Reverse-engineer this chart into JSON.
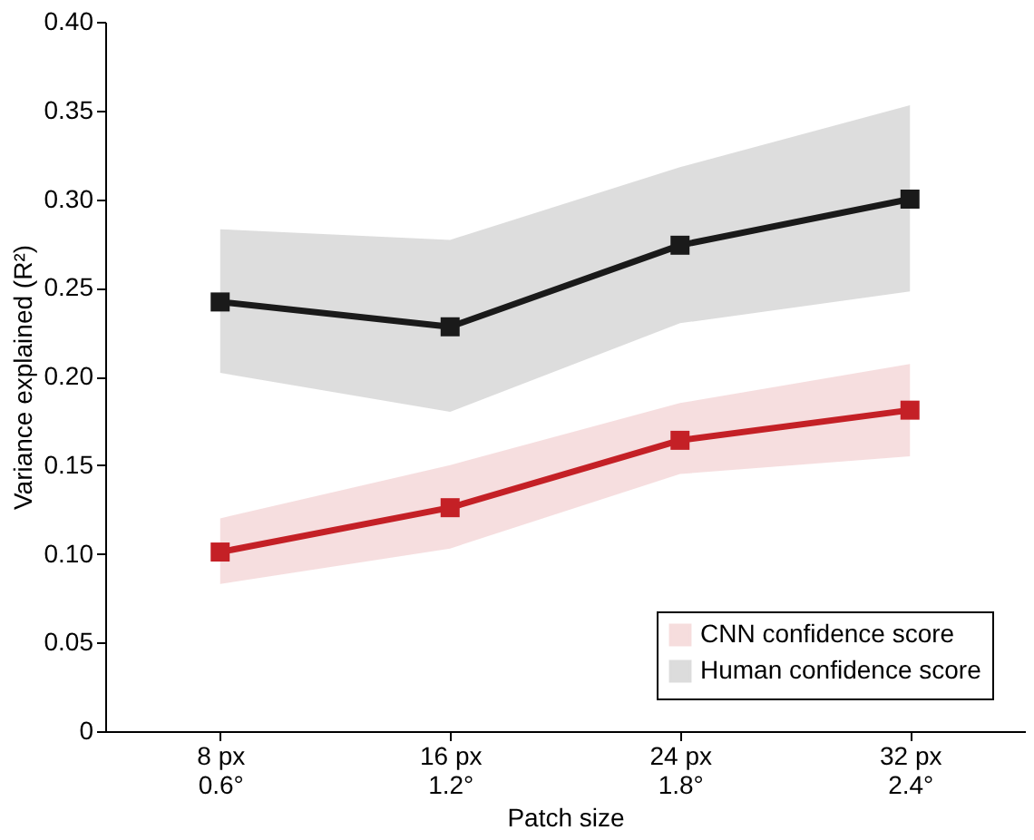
{
  "chart_data": {
    "type": "line",
    "xlabel": "Patch size",
    "ylabel": "Variance explained (R²)",
    "categories": [
      "8 px\n0.6°",
      "16 px\n1.2°",
      "24 px\n1.8°",
      "32 px\n2.4°"
    ],
    "series": [
      {
        "name": "CNN confidence score",
        "color": "#c42026",
        "values": [
          0.101,
          0.126,
          0.164,
          0.181
        ],
        "lower": [
          0.083,
          0.103,
          0.145,
          0.155
        ],
        "upper": [
          0.12,
          0.15,
          0.185,
          0.207
        ]
      },
      {
        "name": "Human confidence score",
        "color": "#1a1a1a",
        "values": [
          0.242,
          0.228,
          0.274,
          0.3
        ],
        "lower": [
          0.202,
          0.18,
          0.23,
          0.248
        ],
        "upper": [
          0.283,
          0.277,
          0.318,
          0.353
        ]
      }
    ],
    "ylim": [
      0,
      0.4
    ],
    "yticks": [
      0,
      0.05,
      {
        "value": 0.1,
        "label": "0.10"
      },
      0.15,
      {
        "value": 0.2,
        "label": "0.20"
      },
      0.25,
      {
        "value": 0.3,
        "label": "0.30"
      },
      0.35,
      {
        "value": 0.4,
        "label": "0.40"
      }
    ],
    "grid": false,
    "legend": "bottom right",
    "marker": "square",
    "line_style": "solid"
  }
}
